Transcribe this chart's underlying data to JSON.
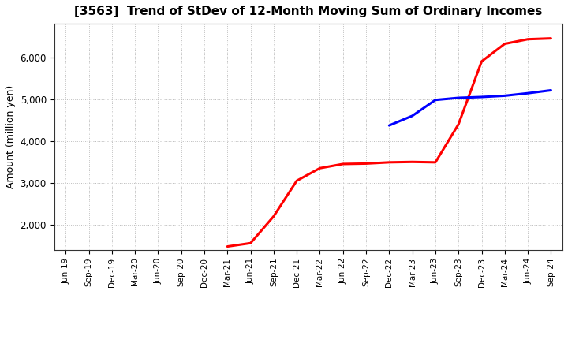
{
  "title": "[3563]  Trend of StDev of 12-Month Moving Sum of Ordinary Incomes",
  "ylabel": "Amount (million yen)",
  "x_labels": [
    "Jun-19",
    "Sep-19",
    "Dec-19",
    "Mar-20",
    "Jun-20",
    "Sep-20",
    "Dec-20",
    "Mar-21",
    "Jun-21",
    "Sep-21",
    "Dec-21",
    "Mar-22",
    "Jun-22",
    "Sep-22",
    "Dec-22",
    "Mar-23",
    "Jun-23",
    "Sep-23",
    "Dec-23",
    "Mar-24",
    "Jun-24",
    "Sep-24"
  ],
  "ylim": [
    1400,
    6800
  ],
  "yticks": [
    2000,
    3000,
    4000,
    5000,
    6000
  ],
  "series_3y": {
    "x": [
      7,
      8,
      9,
      10,
      11,
      12,
      13,
      14,
      15,
      16,
      17,
      18,
      19,
      20,
      21
    ],
    "y": [
      1480,
      1560,
      2200,
      3050,
      3350,
      3450,
      3460,
      3490,
      3500,
      3490,
      4400,
      5900,
      6320,
      6430,
      6450
    ],
    "color": "#ff0000",
    "lw": 2.2
  },
  "series_5y": {
    "x": [
      14,
      15,
      16,
      17,
      18,
      19,
      20,
      21
    ],
    "y": [
      4370,
      4600,
      4980,
      5030,
      5050,
      5080,
      5140,
      5210
    ],
    "color": "#0000ff",
    "lw": 2.2
  },
  "series_7y": {
    "color": "#00cccc",
    "lw": 2.2
  },
  "series_10y": {
    "color": "#008800",
    "lw": 2.2
  },
  "background_color": "#ffffff",
  "grid_color": "#bbbbbb"
}
